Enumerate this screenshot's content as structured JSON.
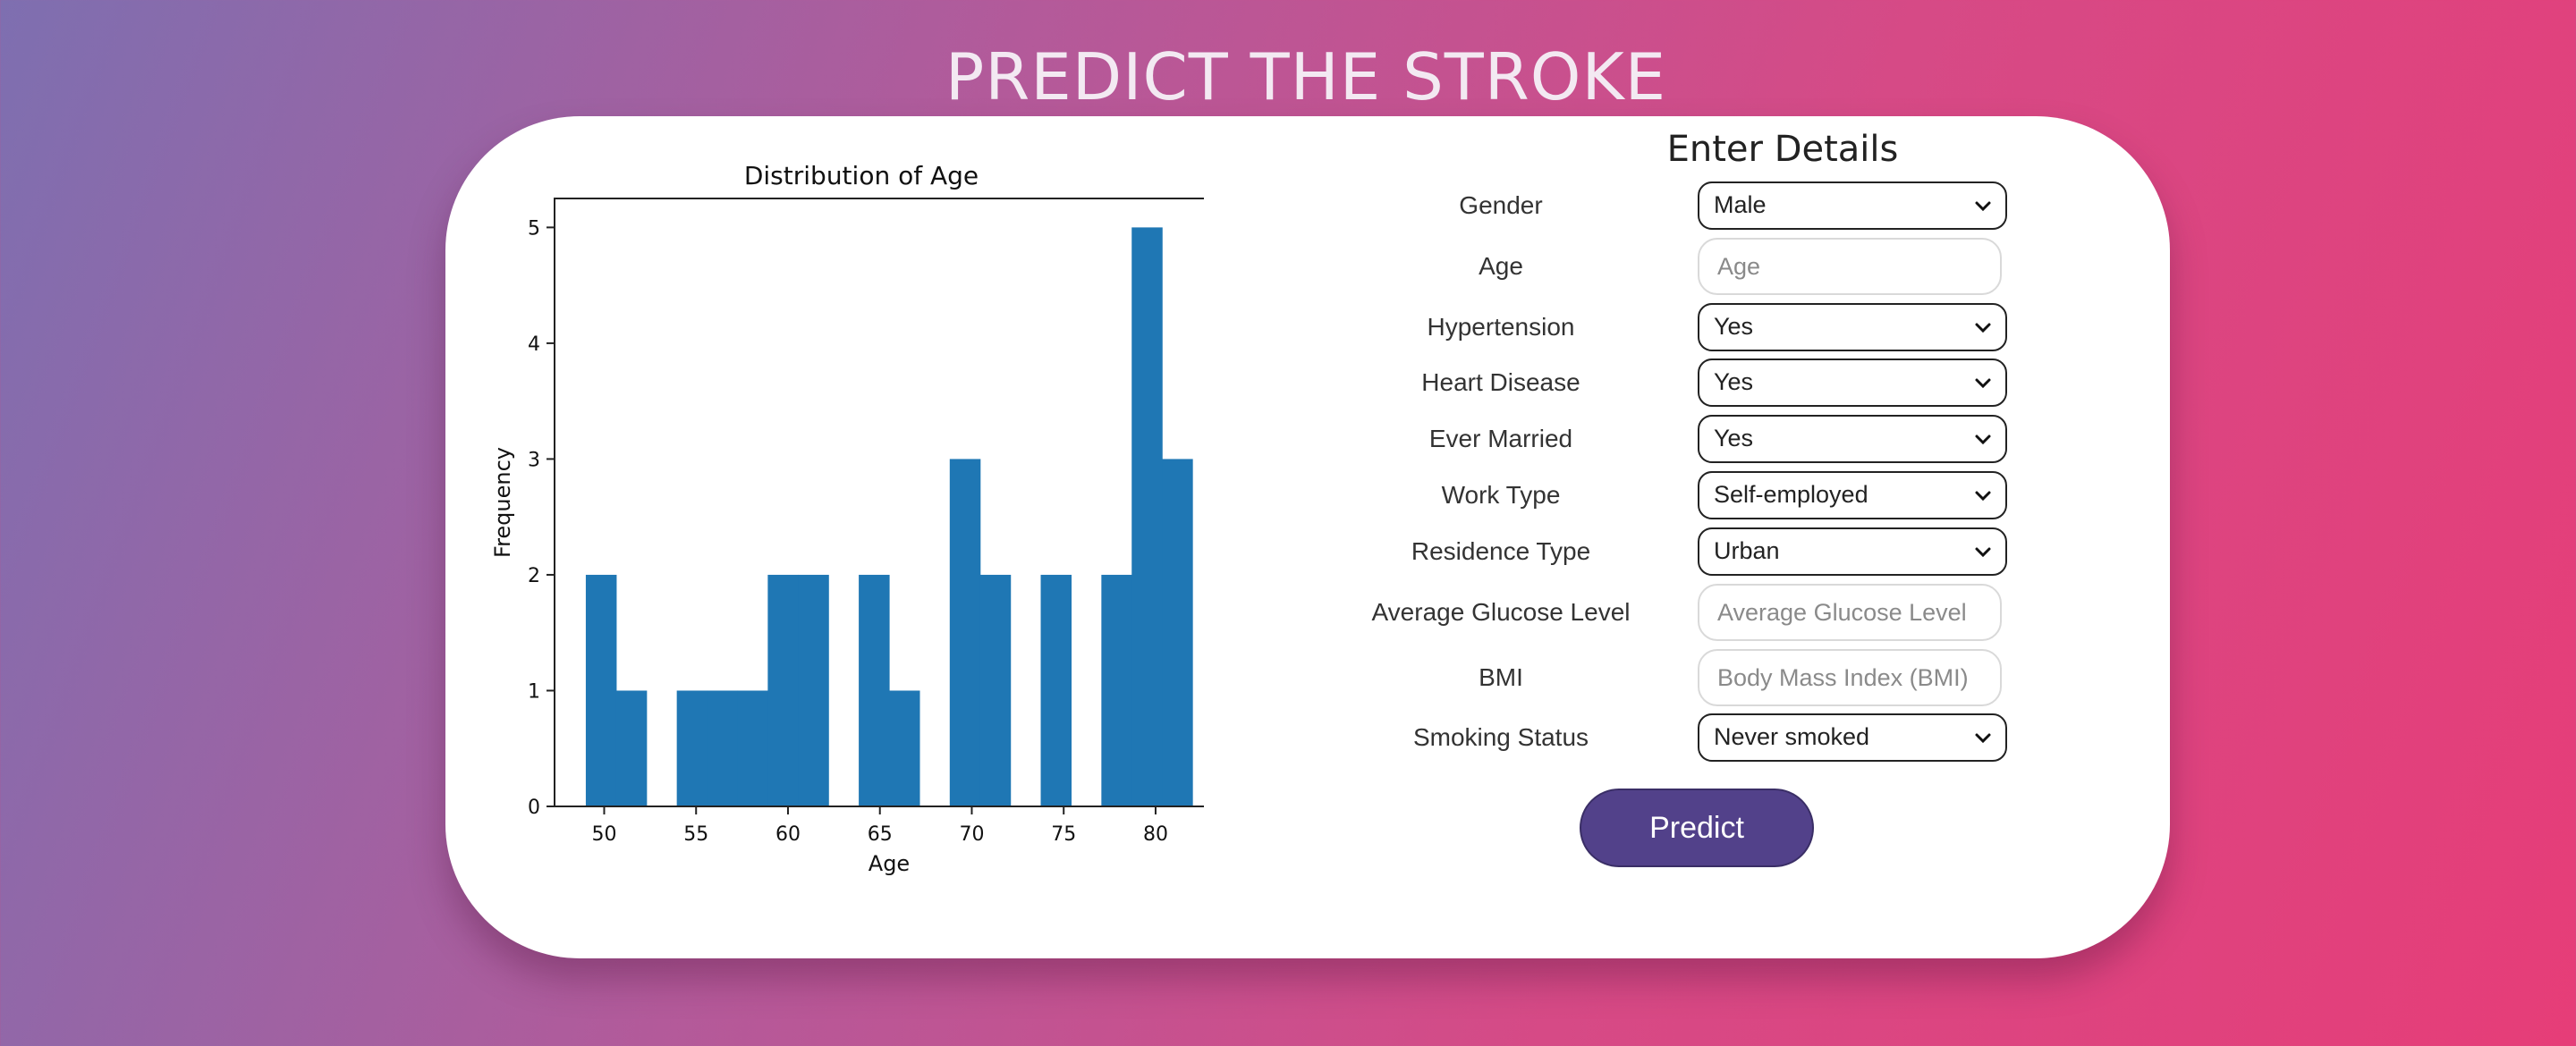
{
  "page": {
    "title": "PREDICT THE STROKE"
  },
  "form": {
    "title": "Enter Details",
    "fields": [
      {
        "key": "gender",
        "label": "Gender",
        "type": "select",
        "value": "Male"
      },
      {
        "key": "age",
        "label": "Age",
        "type": "input",
        "placeholder": "Age"
      },
      {
        "key": "hypertension",
        "label": "Hypertension",
        "type": "select",
        "value": "Yes"
      },
      {
        "key": "heart",
        "label": "Heart Disease",
        "type": "select",
        "value": "Yes"
      },
      {
        "key": "married",
        "label": "Ever Married",
        "type": "select",
        "value": "Yes"
      },
      {
        "key": "work",
        "label": "Work Type",
        "type": "select",
        "value": "Self-employed"
      },
      {
        "key": "residence",
        "label": "Residence Type",
        "type": "select",
        "value": "Urban"
      },
      {
        "key": "glucose",
        "label": "Average Glucose Level",
        "type": "input",
        "placeholder": "Average Glucose Level"
      },
      {
        "key": "bmi",
        "label": "BMI",
        "type": "input",
        "placeholder": "Body Mass Index (BMI)"
      },
      {
        "key": "smoking",
        "label": "Smoking Status",
        "type": "select",
        "value": "Never smoked"
      }
    ],
    "predict_label": "Predict"
  },
  "chart_data": {
    "type": "bar",
    "title": "Distribution of Age",
    "xlabel": "Age",
    "ylabel": "Frequency",
    "bin_width": 1.65,
    "bins": [
      {
        "start": 49.0,
        "count": 2
      },
      {
        "start": 50.65,
        "count": 1
      },
      {
        "start": 52.3,
        "count": 0
      },
      {
        "start": 53.95,
        "count": 1
      },
      {
        "start": 55.6,
        "count": 1
      },
      {
        "start": 57.25,
        "count": 1
      },
      {
        "start": 58.9,
        "count": 2
      },
      {
        "start": 60.55,
        "count": 2
      },
      {
        "start": 62.2,
        "count": 0
      },
      {
        "start": 63.85,
        "count": 2
      },
      {
        "start": 65.5,
        "count": 1
      },
      {
        "start": 67.15,
        "count": 0
      },
      {
        "start": 68.8,
        "count": 3
      },
      {
        "start": 70.45,
        "count": 2
      },
      {
        "start": 72.1,
        "count": 0
      },
      {
        "start": 73.75,
        "count": 2
      },
      {
        "start": 75.4,
        "count": 0
      },
      {
        "start": 77.05,
        "count": 2
      },
      {
        "start": 78.7,
        "count": 5
      },
      {
        "start": 80.35,
        "count": 3
      }
    ],
    "xlim": [
      47.3,
      83.7
    ],
    "ylim": [
      0,
      5.25
    ],
    "xticks": [
      50,
      55,
      60,
      65,
      70,
      75,
      80
    ],
    "yticks": [
      0,
      1,
      2,
      3,
      4,
      5
    ],
    "bar_color": "#1f77b4",
    "grid": false
  }
}
